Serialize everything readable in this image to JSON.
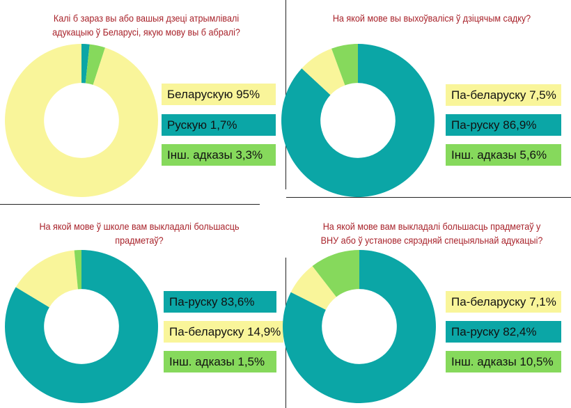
{
  "colors": {
    "yellow": "#f9f59a",
    "teal": "#0ba6a6",
    "green": "#86d95c",
    "title": "#a8222a"
  },
  "chart_data": [
    {
      "type": "pie",
      "title": "Калі б зараз вы або вашыя дзеці атрымлівалі адукацыю ў Беларусі, якую мову вы б абралі?",
      "title_lines": [
        "Калі б зараз вы або вашыя дзеці атрымлівалі",
        "адукацыю ў Беларусі, якую мову вы б абралі?"
      ],
      "categories": [
        "Беларускую",
        "Рускую",
        "Інш. адказы"
      ],
      "values": [
        95,
        1.7,
        3.3
      ],
      "labels": [
        "Беларускую 95%",
        "Рускую 1,7%",
        "Інш. адказы 3,3%"
      ],
      "colors": [
        "#f9f59a",
        "#0ba6a6",
        "#86d95c"
      ],
      "slice_order": [
        1,
        2,
        0
      ]
    },
    {
      "type": "pie",
      "title": "На якой мове вы выхоўваліся ў дзіцячым садку?",
      "title_lines": [
        "На якой мове вы выхоўваліся ў дзіцячым садку?"
      ],
      "categories": [
        "Па-беларуску",
        "Па-руску",
        "Інш. адказы"
      ],
      "values": [
        7.5,
        86.9,
        5.6
      ],
      "labels": [
        "Па-беларуску 7,5%",
        "Па-руску 86,9%",
        "Інш. адказы 5,6%"
      ],
      "colors": [
        "#f9f59a",
        "#0ba6a6",
        "#86d95c"
      ],
      "slice_order": [
        1,
        0,
        2
      ]
    },
    {
      "type": "pie",
      "title": "На якой мове ў школе вам выкладалі большасць прадметаў?",
      "title_lines": [
        "На якой мове ў школе вам выкладалі большасць",
        "прадметаў?"
      ],
      "categories": [
        "Па-руску",
        "Па-беларуску",
        "Інш. адказы"
      ],
      "values": [
        83.6,
        14.9,
        1.5
      ],
      "labels": [
        "Па-руску 83,6%",
        "Па-беларуску 14,9%",
        "Інш. адказы 1,5%"
      ],
      "colors": [
        "#0ba6a6",
        "#f9f59a",
        "#86d95c"
      ],
      "slice_order": [
        0,
        1,
        2
      ]
    },
    {
      "type": "pie",
      "title": "На якой мове вам выкладалі большасць прадметаў у ВНУ або ў установе сярэдняй спецыяльнай адукацыі?",
      "title_lines": [
        "На якой мове вам выкладалі большасць прадметаў у",
        "ВНУ або ў установе сярэдняй спецыяльнай адукацыі?"
      ],
      "categories": [
        "Па-беларуску",
        "Па-руску",
        "Інш. адказы"
      ],
      "values": [
        7.1,
        82.4,
        10.5
      ],
      "labels": [
        "Па-беларуску 7,1%",
        "Па-руску 82,4%",
        "Інш. адказы 10,5%"
      ],
      "colors": [
        "#f9f59a",
        "#0ba6a6",
        "#86d95c"
      ],
      "slice_order": [
        1,
        0,
        2
      ]
    }
  ]
}
